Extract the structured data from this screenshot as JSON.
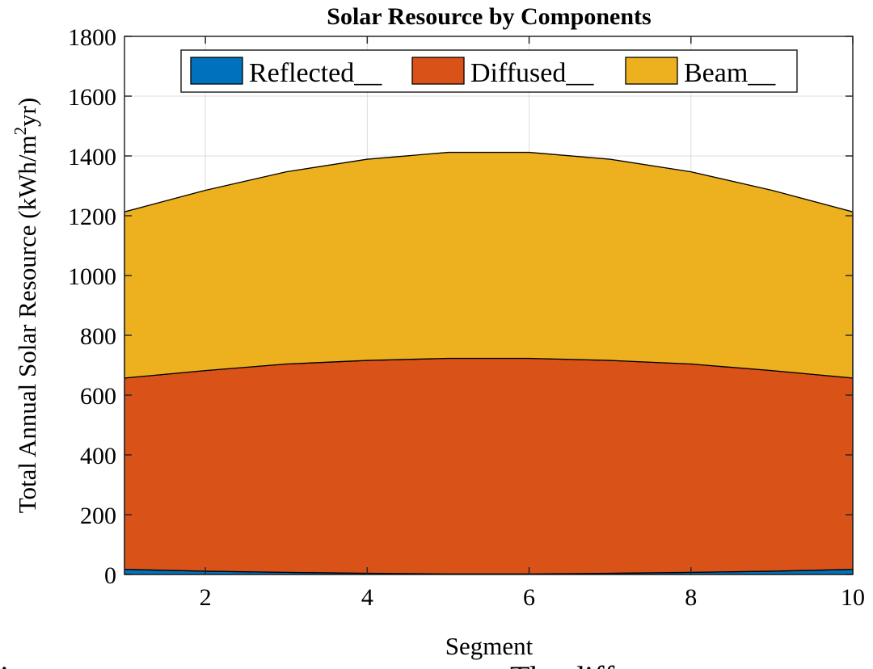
{
  "chart_data": {
    "type": "area",
    "stacked": true,
    "title": "Solar Resource by Components",
    "xlabel": "Segment",
    "ylabel_main": "Total Annual Solar Resource (kWh/m",
    "ylabel_sup": "2",
    "ylabel_tail": "yr)",
    "xlim": [
      1,
      10
    ],
    "ylim": [
      0,
      1800
    ],
    "xticks": [
      2,
      4,
      6,
      8,
      10
    ],
    "yticks": [
      0,
      200,
      400,
      600,
      800,
      1000,
      1200,
      1400,
      1600,
      1800
    ],
    "grid": true,
    "legend_position": "top",
    "x": [
      1,
      2,
      3,
      4,
      5,
      6,
      7,
      8,
      9,
      10
    ],
    "series": [
      {
        "name": "Reflected__",
        "color": "#0072BD",
        "values": [
          17,
          11,
          7,
          4,
          2,
          2,
          4,
          7,
          11,
          17
        ]
      },
      {
        "name": "Diffused__",
        "color": "#D95319",
        "values": [
          640,
          671,
          697,
          712,
          721,
          721,
          712,
          697,
          671,
          640
        ]
      },
      {
        "name": "Beam__",
        "color": "#EDB120",
        "values": [
          556,
          603,
          643,
          673,
          689,
          689,
          673,
          643,
          603,
          556
        ]
      }
    ]
  },
  "caption_fragment": "i e e e e e e e e e e e e e e e e e e e e e e The diff"
}
